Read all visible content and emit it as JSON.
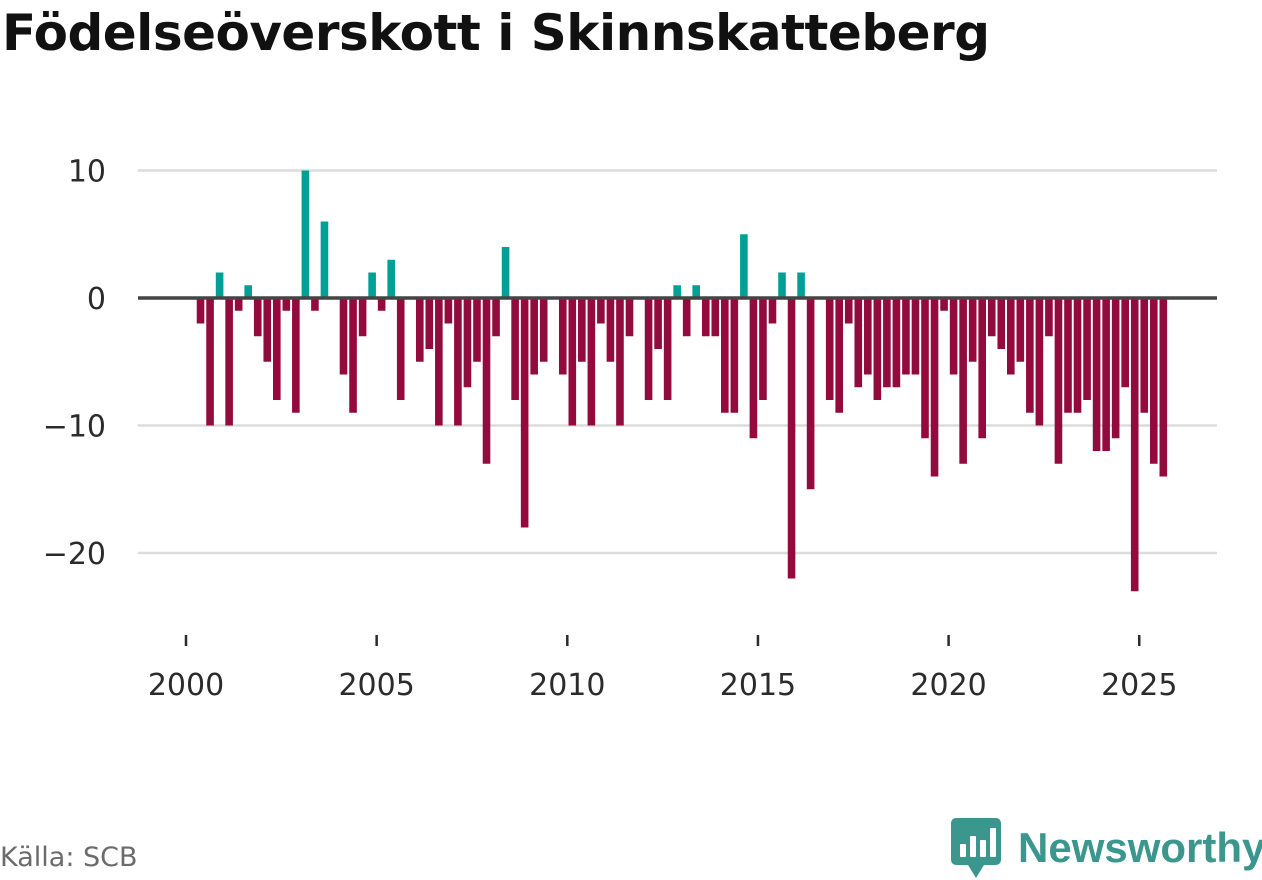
{
  "title": "Födelseöverskott i Skinnskatteberg",
  "source": "Källa: SCB",
  "brand": {
    "name": "Newsworthy",
    "icon": "newsworthy-logo-icon"
  },
  "colors": {
    "positive": "#00a096",
    "negative": "#930a3c",
    "zero_line": "#444444",
    "grid": "#dcdcdc",
    "text": "#2b2b2b",
    "brand": "#3b968e"
  },
  "chart_data": {
    "type": "bar",
    "title": "Födelseöverskott i Skinnskatteberg",
    "xlabel": "",
    "ylabel": "",
    "xlim": [
      1999.5,
      2026.5
    ],
    "ylim": [
      -25,
      13
    ],
    "y_ticks": [
      10,
      0,
      -10,
      -20
    ],
    "y_tick_labels": [
      "10",
      "0",
      "−10",
      "−20"
    ],
    "x_ticks": [
      2000,
      2005,
      2010,
      2015,
      2020,
      2025
    ],
    "x_tick_labels": [
      "2000",
      "2005",
      "2010",
      "2015",
      "2020",
      "2025"
    ],
    "grid": true,
    "frequency": "quarterly",
    "start": 2000,
    "series": [
      {
        "name": "Födelseöverskott",
        "values": [
          0,
          -2,
          -10,
          2,
          -10,
          -1,
          1,
          -3,
          -5,
          -8,
          -1,
          -9,
          10,
          -1,
          6,
          0,
          -6,
          -9,
          -3,
          2,
          -1,
          3,
          -8,
          0,
          -5,
          -4,
          -10,
          -2,
          -10,
          -7,
          -5,
          -13,
          -3,
          4,
          -8,
          -18,
          -6,
          -5,
          0,
          -6,
          -10,
          -5,
          -10,
          -2,
          -5,
          -10,
          -3,
          0,
          -8,
          -4,
          -8,
          1,
          -3,
          1,
          -3,
          -3,
          -9,
          -9,
          5,
          -11,
          -8,
          -2,
          2,
          -22,
          2,
          -15,
          0,
          -8,
          -9,
          -2,
          -7,
          -6,
          -8,
          -7,
          -7,
          -6,
          -6,
          -11,
          -14,
          -1,
          -6,
          -13,
          -5,
          -11,
          -3,
          -4,
          -6,
          -5,
          -9,
          -10,
          -3,
          -13,
          -9,
          -9,
          -8,
          -12,
          -12,
          -11,
          -7,
          -23,
          -9,
          -13,
          -14
        ]
      }
    ]
  }
}
